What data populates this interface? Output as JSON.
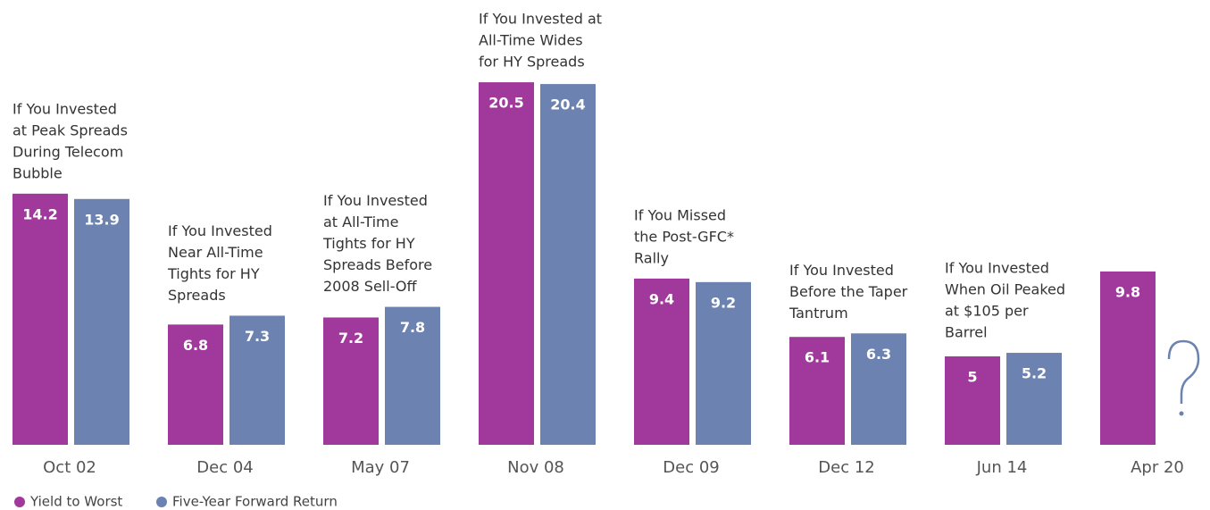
{
  "chart_data": {
    "type": "bar",
    "categories": [
      "Oct 02",
      "Dec 04",
      "May 07",
      "Nov 08",
      "Dec 09",
      "Dec 12",
      "Jun 14",
      "Apr 20"
    ],
    "series": [
      {
        "name": "Yield to Worst",
        "color": "#a0399b",
        "values": [
          14.2,
          6.8,
          7.2,
          20.5,
          9.4,
          6.1,
          5.0,
          9.8
        ]
      },
      {
        "name": "Five-Year Forward Return",
        "color": "#6c82b1",
        "values": [
          13.9,
          7.3,
          7.8,
          20.4,
          9.2,
          6.3,
          5.2,
          null
        ]
      }
    ],
    "annotations": [
      [
        "If You Invested",
        "at Peak Spreads",
        "During Telecom",
        "Bubble"
      ],
      [
        "If You Invested",
        "Near All-Time",
        "Tights for HY",
        "Spreads"
      ],
      [
        "If You Invested",
        "at All-Time",
        "Tights for HY",
        "Spreads Before",
        "2008 Sell-Off"
      ],
      [
        "If You Invested at",
        "All-Time Wides",
        "for HY Spreads"
      ],
      [
        "If You Missed",
        "the Post-GFC*",
        "Rally"
      ],
      [
        "If You Invested",
        "Before the Taper",
        "Tantrum"
      ],
      [
        "If You Invested",
        "When Oil Peaked",
        "at $105 per",
        "Barrel"
      ],
      null
    ],
    "ylim": [
      0,
      25
    ]
  }
}
